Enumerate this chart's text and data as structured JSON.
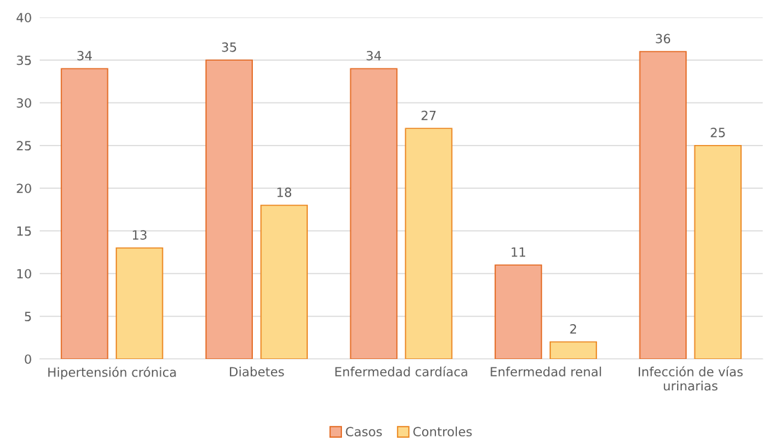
{
  "chart_data": {
    "type": "bar",
    "categories": [
      "Hipertensión crónica",
      "Diabetes",
      "Enfermedad cardíaca",
      "Enfermedad renal",
      "Infección de vías\nurinarias"
    ],
    "series": [
      {
        "name": "Casos",
        "color": "#f5ad8f",
        "values": [
          34,
          35,
          34,
          11,
          36
        ]
      },
      {
        "name": "Controles",
        "color": "#fdd98a",
        "values": [
          13,
          18,
          27,
          2,
          25
        ]
      }
    ],
    "ylim": [
      0,
      40
    ],
    "yticks": [
      0,
      5,
      10,
      15,
      20,
      25,
      30,
      35,
      40
    ],
    "grid": "y",
    "legend": "bottom",
    "data_labels": true
  }
}
